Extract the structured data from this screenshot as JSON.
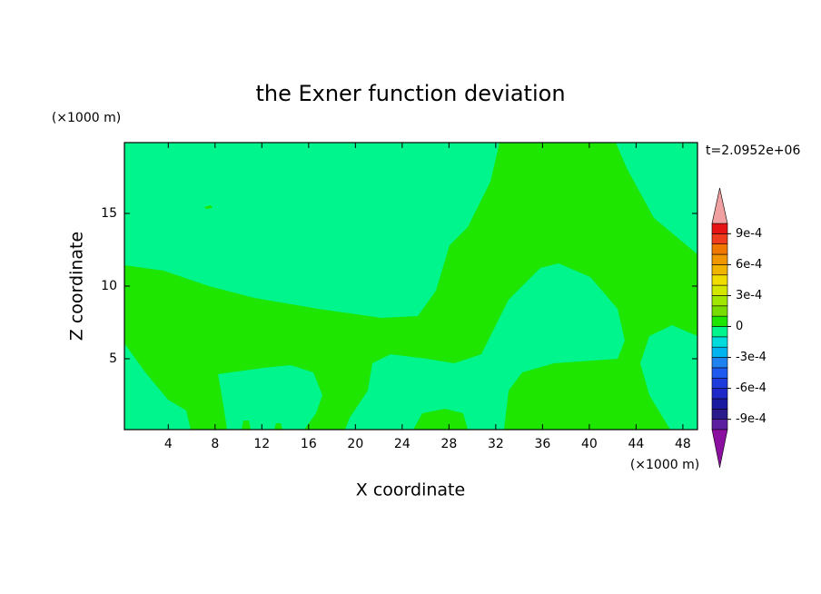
{
  "chart_data": {
    "type": "contour",
    "title": "the Exner function deviation",
    "x_label": "X coordinate",
    "y_label": "Z coordinate",
    "x_unit": "(×1000 m)",
    "y_unit": "(×1000 m)",
    "time_label": "t=2.0952e+06",
    "xlim": [
      0.25,
      49.25
    ],
    "ylim": [
      0.125,
      19.875
    ],
    "xticks": [
      4,
      8,
      12,
      16,
      20,
      24,
      28,
      32,
      36,
      40,
      44,
      48
    ],
    "yticks": [
      5,
      10,
      15
    ],
    "colorbar": {
      "levels": [
        -0.001,
        -0.0009,
        -0.0008,
        -0.0007,
        -0.0006,
        -0.0005,
        -0.0004,
        -0.0003,
        -0.0002,
        -0.0001,
        0,
        0.0001,
        0.0002,
        0.0003,
        0.0004,
        0.0005,
        0.0006,
        0.0007,
        0.0008,
        0.0009,
        0.001
      ],
      "colors": [
        "#5a1e9e",
        "#2a1a8c",
        "#1a1aa0",
        "#1e28c8",
        "#1e3cdc",
        "#1e5af0",
        "#1e82f0",
        "#00b4f0",
        "#00dcdc",
        "#00f58d",
        "#1ee600",
        "#78dc00",
        "#a0e600",
        "#d2e600",
        "#f0dc00",
        "#f0b400",
        "#f09600",
        "#f07800",
        "#f03c1e",
        "#e61414"
      ],
      "under_color": "#8c10a0",
      "over_color": "#f0a0a0",
      "ticks": [
        {
          "value": -0.0009,
          "label": "-9e-4"
        },
        {
          "value": -0.0006,
          "label": "-6e-4"
        },
        {
          "value": -0.0003,
          "label": "-3e-4"
        },
        0,
        {
          "value": 0.0003,
          "label": "3e-4"
        },
        {
          "value": 0.0006,
          "label": "6e-4"
        },
        {
          "value": 0.0009,
          "label": "9e-4"
        }
      ]
    }
  }
}
